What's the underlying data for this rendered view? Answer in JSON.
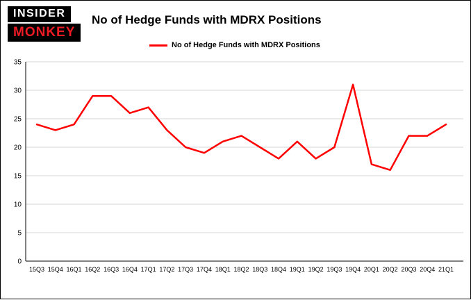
{
  "header": {
    "logo_line1": "INSIDER",
    "logo_line2": "MONKEY",
    "title": "No of Hedge Funds with MDRX Positions"
  },
  "legend": {
    "label": "No of Hedge Funds with MDRX Positions",
    "color": "#ff0000"
  },
  "chart_data": {
    "type": "line",
    "title": "No of Hedge Funds with MDRX Positions",
    "categories": [
      "15Q3",
      "15Q4",
      "16Q1",
      "16Q2",
      "16Q3",
      "16Q4",
      "17Q1",
      "17Q2",
      "17Q3",
      "17Q4",
      "18Q1",
      "18Q2",
      "18Q3",
      "18Q4",
      "19Q1",
      "19Q2",
      "19Q3",
      "19Q4",
      "20Q1",
      "20Q2",
      "20Q3",
      "20Q4",
      "21Q1"
    ],
    "values": [
      24,
      23,
      24,
      29,
      29,
      26,
      27,
      23,
      20,
      19,
      21,
      22,
      20,
      18,
      21,
      18,
      20,
      31,
      17,
      16,
      22,
      22,
      24
    ],
    "series_name": "No of Hedge Funds with MDRX Positions",
    "xlabel": "",
    "ylabel": "",
    "ylim": [
      0,
      35
    ],
    "yticks": [
      0,
      5,
      10,
      15,
      20,
      25,
      30,
      35
    ],
    "grid": true,
    "gridline_color": "#d4d4d4",
    "line_color": "#ff0000",
    "legend_position": "top"
  }
}
